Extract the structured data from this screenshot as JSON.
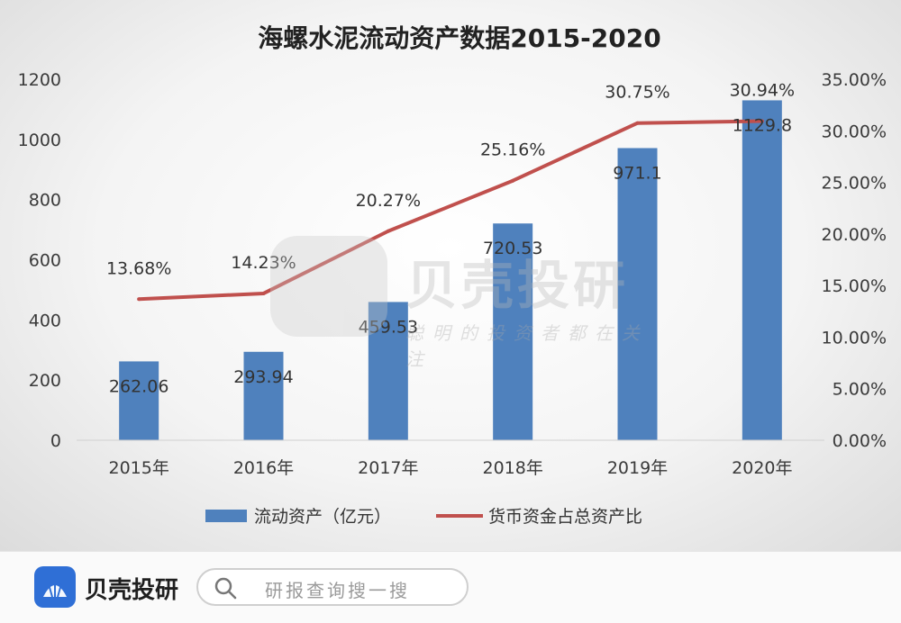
{
  "chart_data": {
    "type": "bar",
    "title": "海螺水泥流动资产数据2015-2020",
    "categories": [
      "2015年",
      "2016年",
      "2017年",
      "2018年",
      "2019年",
      "2020年"
    ],
    "series": [
      {
        "name": "流动资产（亿元）",
        "type": "bar",
        "axis": "left",
        "color": "#4f81bd",
        "values": [
          262.06,
          293.94,
          459.53,
          720.53,
          971.1,
          1129.8
        ],
        "labels": [
          "262.06",
          "293.94",
          "459.53",
          "720.53",
          "971.1",
          "1129.8"
        ]
      },
      {
        "name": "货币资金占总资产比",
        "type": "line",
        "axis": "right",
        "color": "#c0504d",
        "values": [
          13.68,
          14.23,
          20.27,
          25.16,
          30.75,
          30.94
        ],
        "labels": [
          "13.68%",
          "14.23%",
          "20.27%",
          "25.16%",
          "30.75%",
          "30.94%"
        ]
      }
    ],
    "y_left": {
      "ylim": [
        0,
        1200
      ],
      "ticks": [
        "0",
        "200",
        "400",
        "600",
        "800",
        "1000",
        "1200"
      ]
    },
    "y_right": {
      "ylim": [
        0,
        35
      ],
      "ticks": [
        "0.00%",
        "5.00%",
        "10.00%",
        "15.00%",
        "20.00%",
        "25.00%",
        "30.00%",
        "35.00%"
      ]
    },
    "grid": false,
    "legend": "bottom"
  },
  "watermark": {
    "name": "贝壳投研",
    "slogan": "聪明的投资者都在关注"
  },
  "footer": {
    "brand_name": "贝壳投研",
    "search_placeholder": "研报查询搜一搜",
    "search_icon": "search-icon",
    "logo_icon": "shell-logo-icon"
  }
}
